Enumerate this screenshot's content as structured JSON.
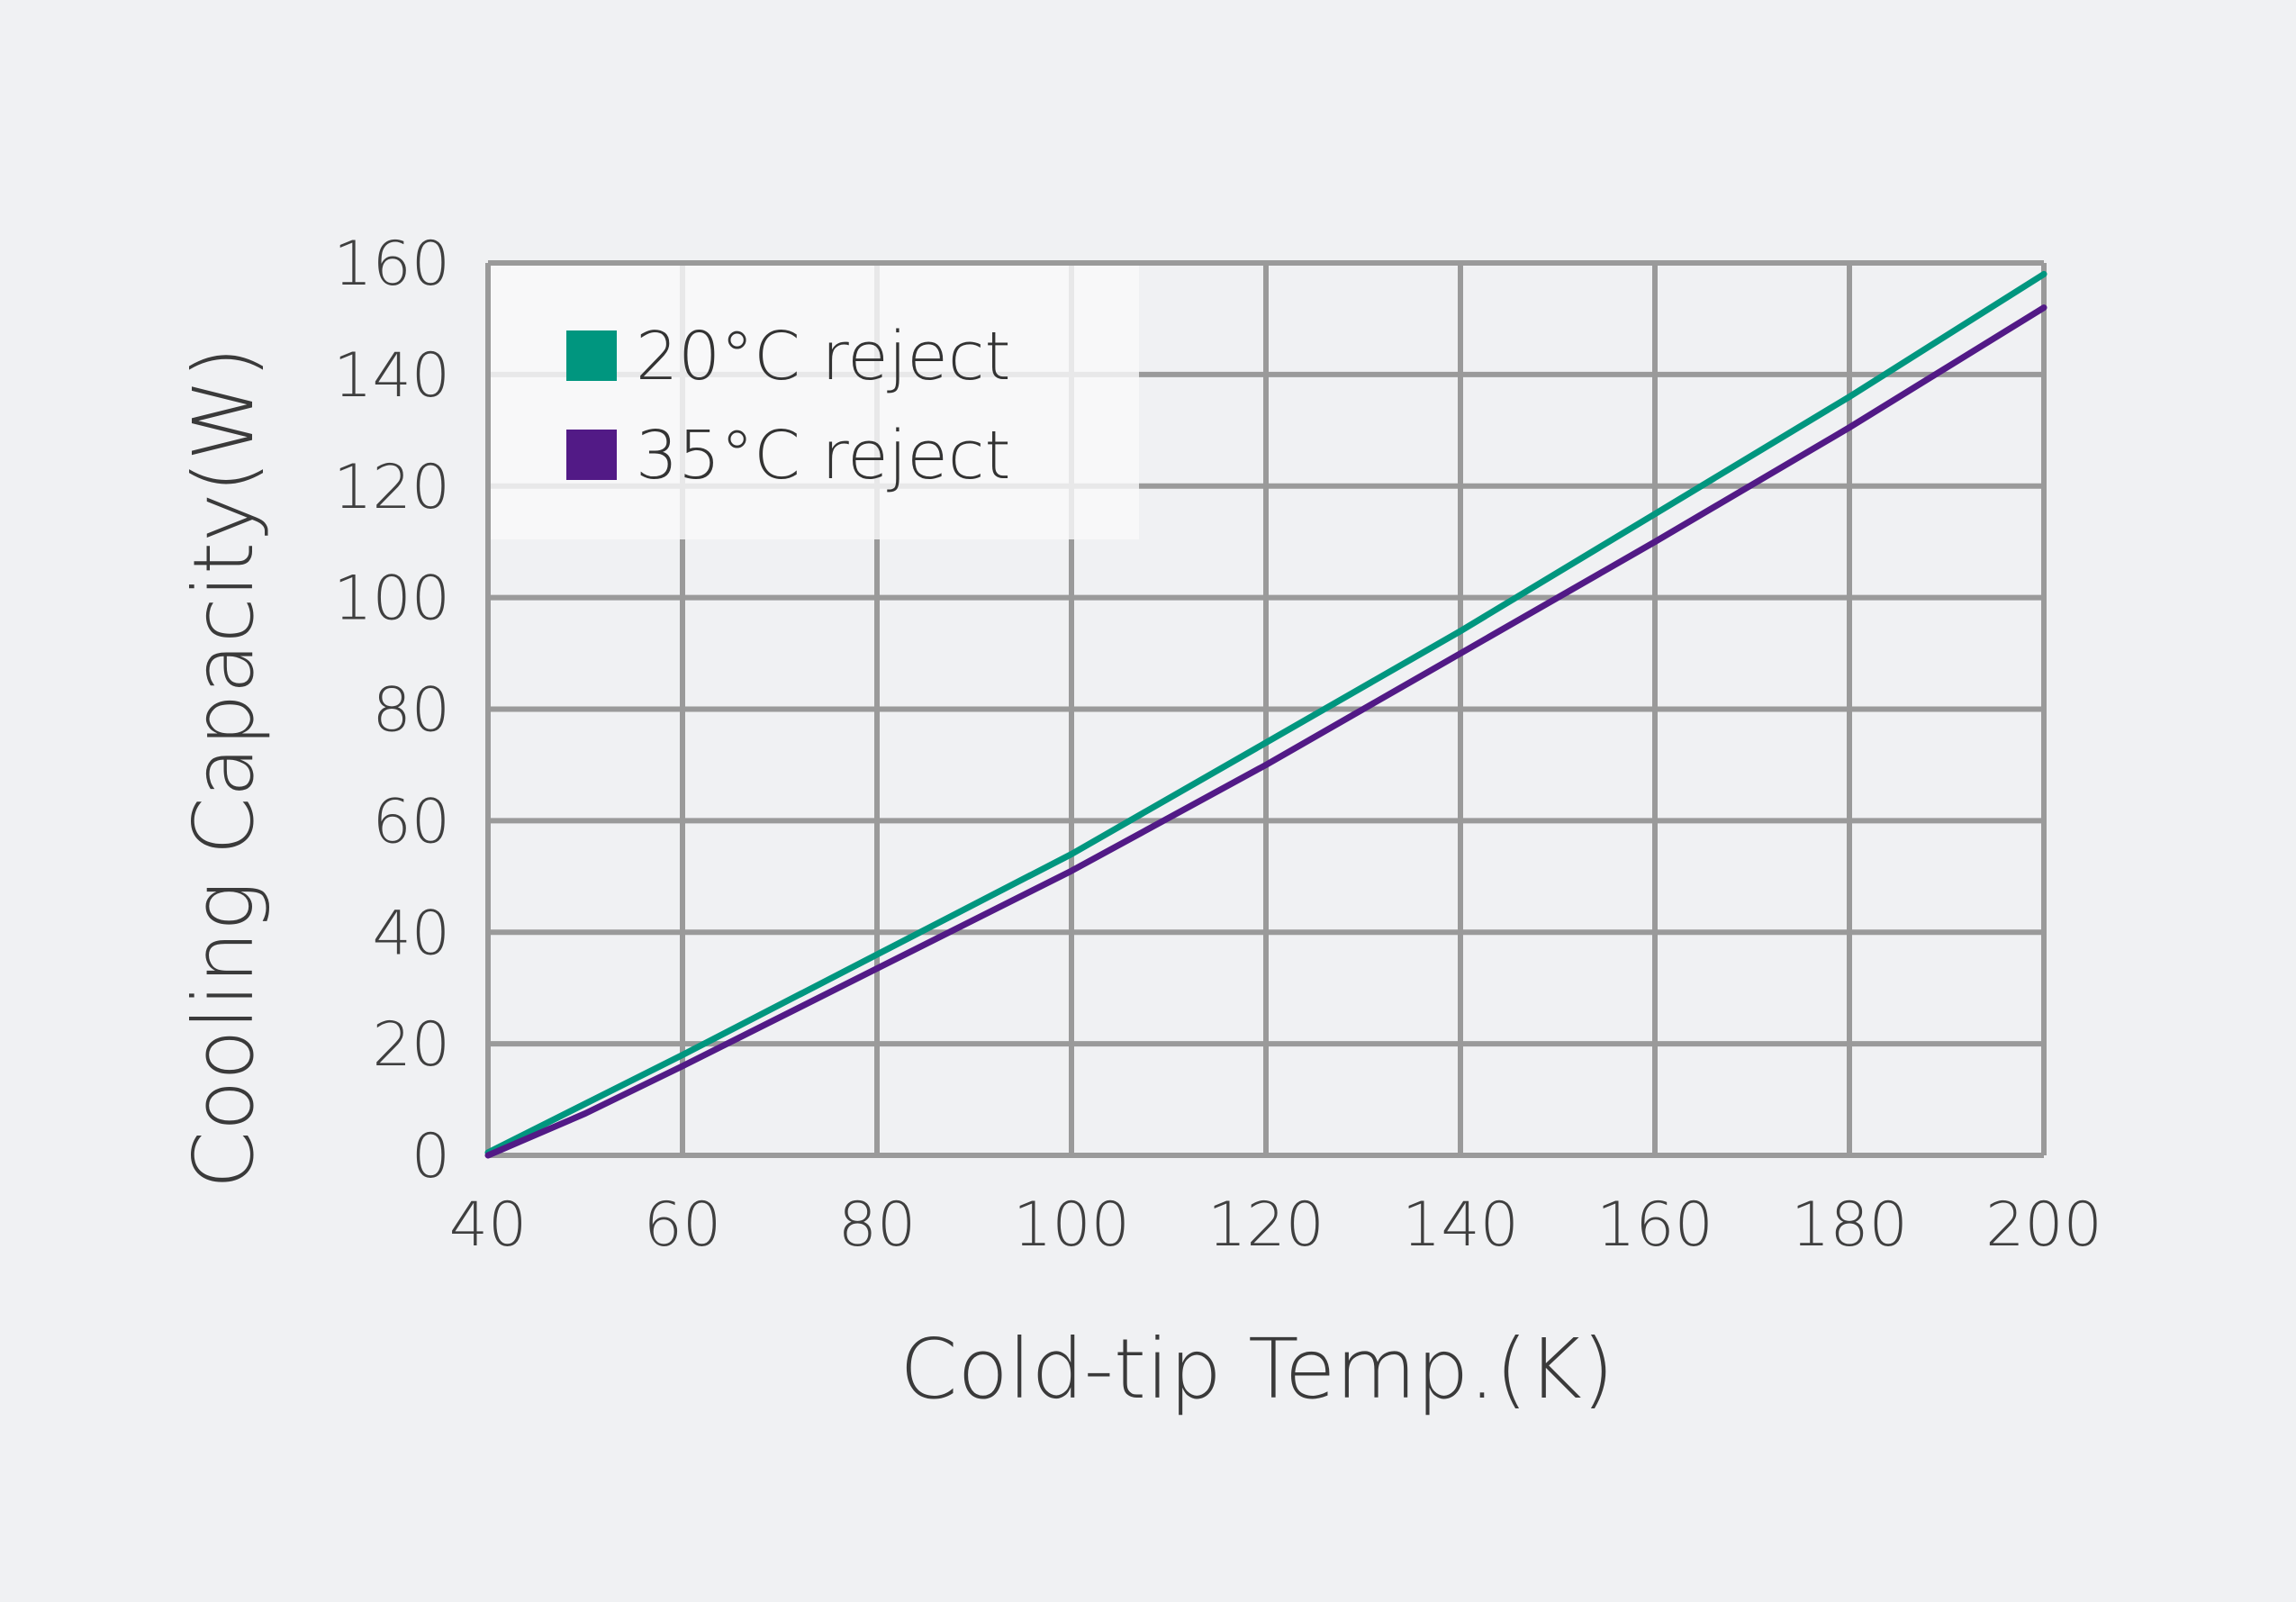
{
  "colors": {
    "background": "#f0f1f3",
    "grid": "#9a9a9a",
    "legend_box": "#f9f9fa",
    "text": "#3a3a3a"
  },
  "chart_data": {
    "type": "line",
    "title": "",
    "xlabel": "Cold-tip Temp.(K)",
    "ylabel": "Cooling Capacity(W)",
    "xlim": [
      40,
      200
    ],
    "ylim": [
      0,
      160
    ],
    "x_ticks": [
      "40",
      "60",
      "80",
      "100",
      "120",
      "140",
      "160",
      "180",
      "200"
    ],
    "y_ticks": [
      "0",
      "20",
      "40",
      "60",
      "80",
      "100",
      "120",
      "140",
      "160"
    ],
    "grid": true,
    "legend_position": "top-left",
    "series": [
      {
        "name": "20°C reject",
        "color": "#00967f",
        "icon": "square-swatch",
        "x": [
          40,
          60,
          80,
          100,
          120,
          140,
          160,
          180,
          200
        ],
        "y": [
          0.5,
          18,
          36,
          54,
          74,
          94,
          115,
          136,
          158
        ]
      },
      {
        "name": "35°C reject",
        "color": "#521a86",
        "icon": "square-swatch",
        "x": [
          40,
          50,
          60,
          80,
          100,
          120,
          140,
          160,
          180,
          200
        ],
        "y": [
          0,
          7.5,
          16,
          33.5,
          51,
          70,
          90,
          110,
          130.5,
          152
        ]
      }
    ]
  }
}
